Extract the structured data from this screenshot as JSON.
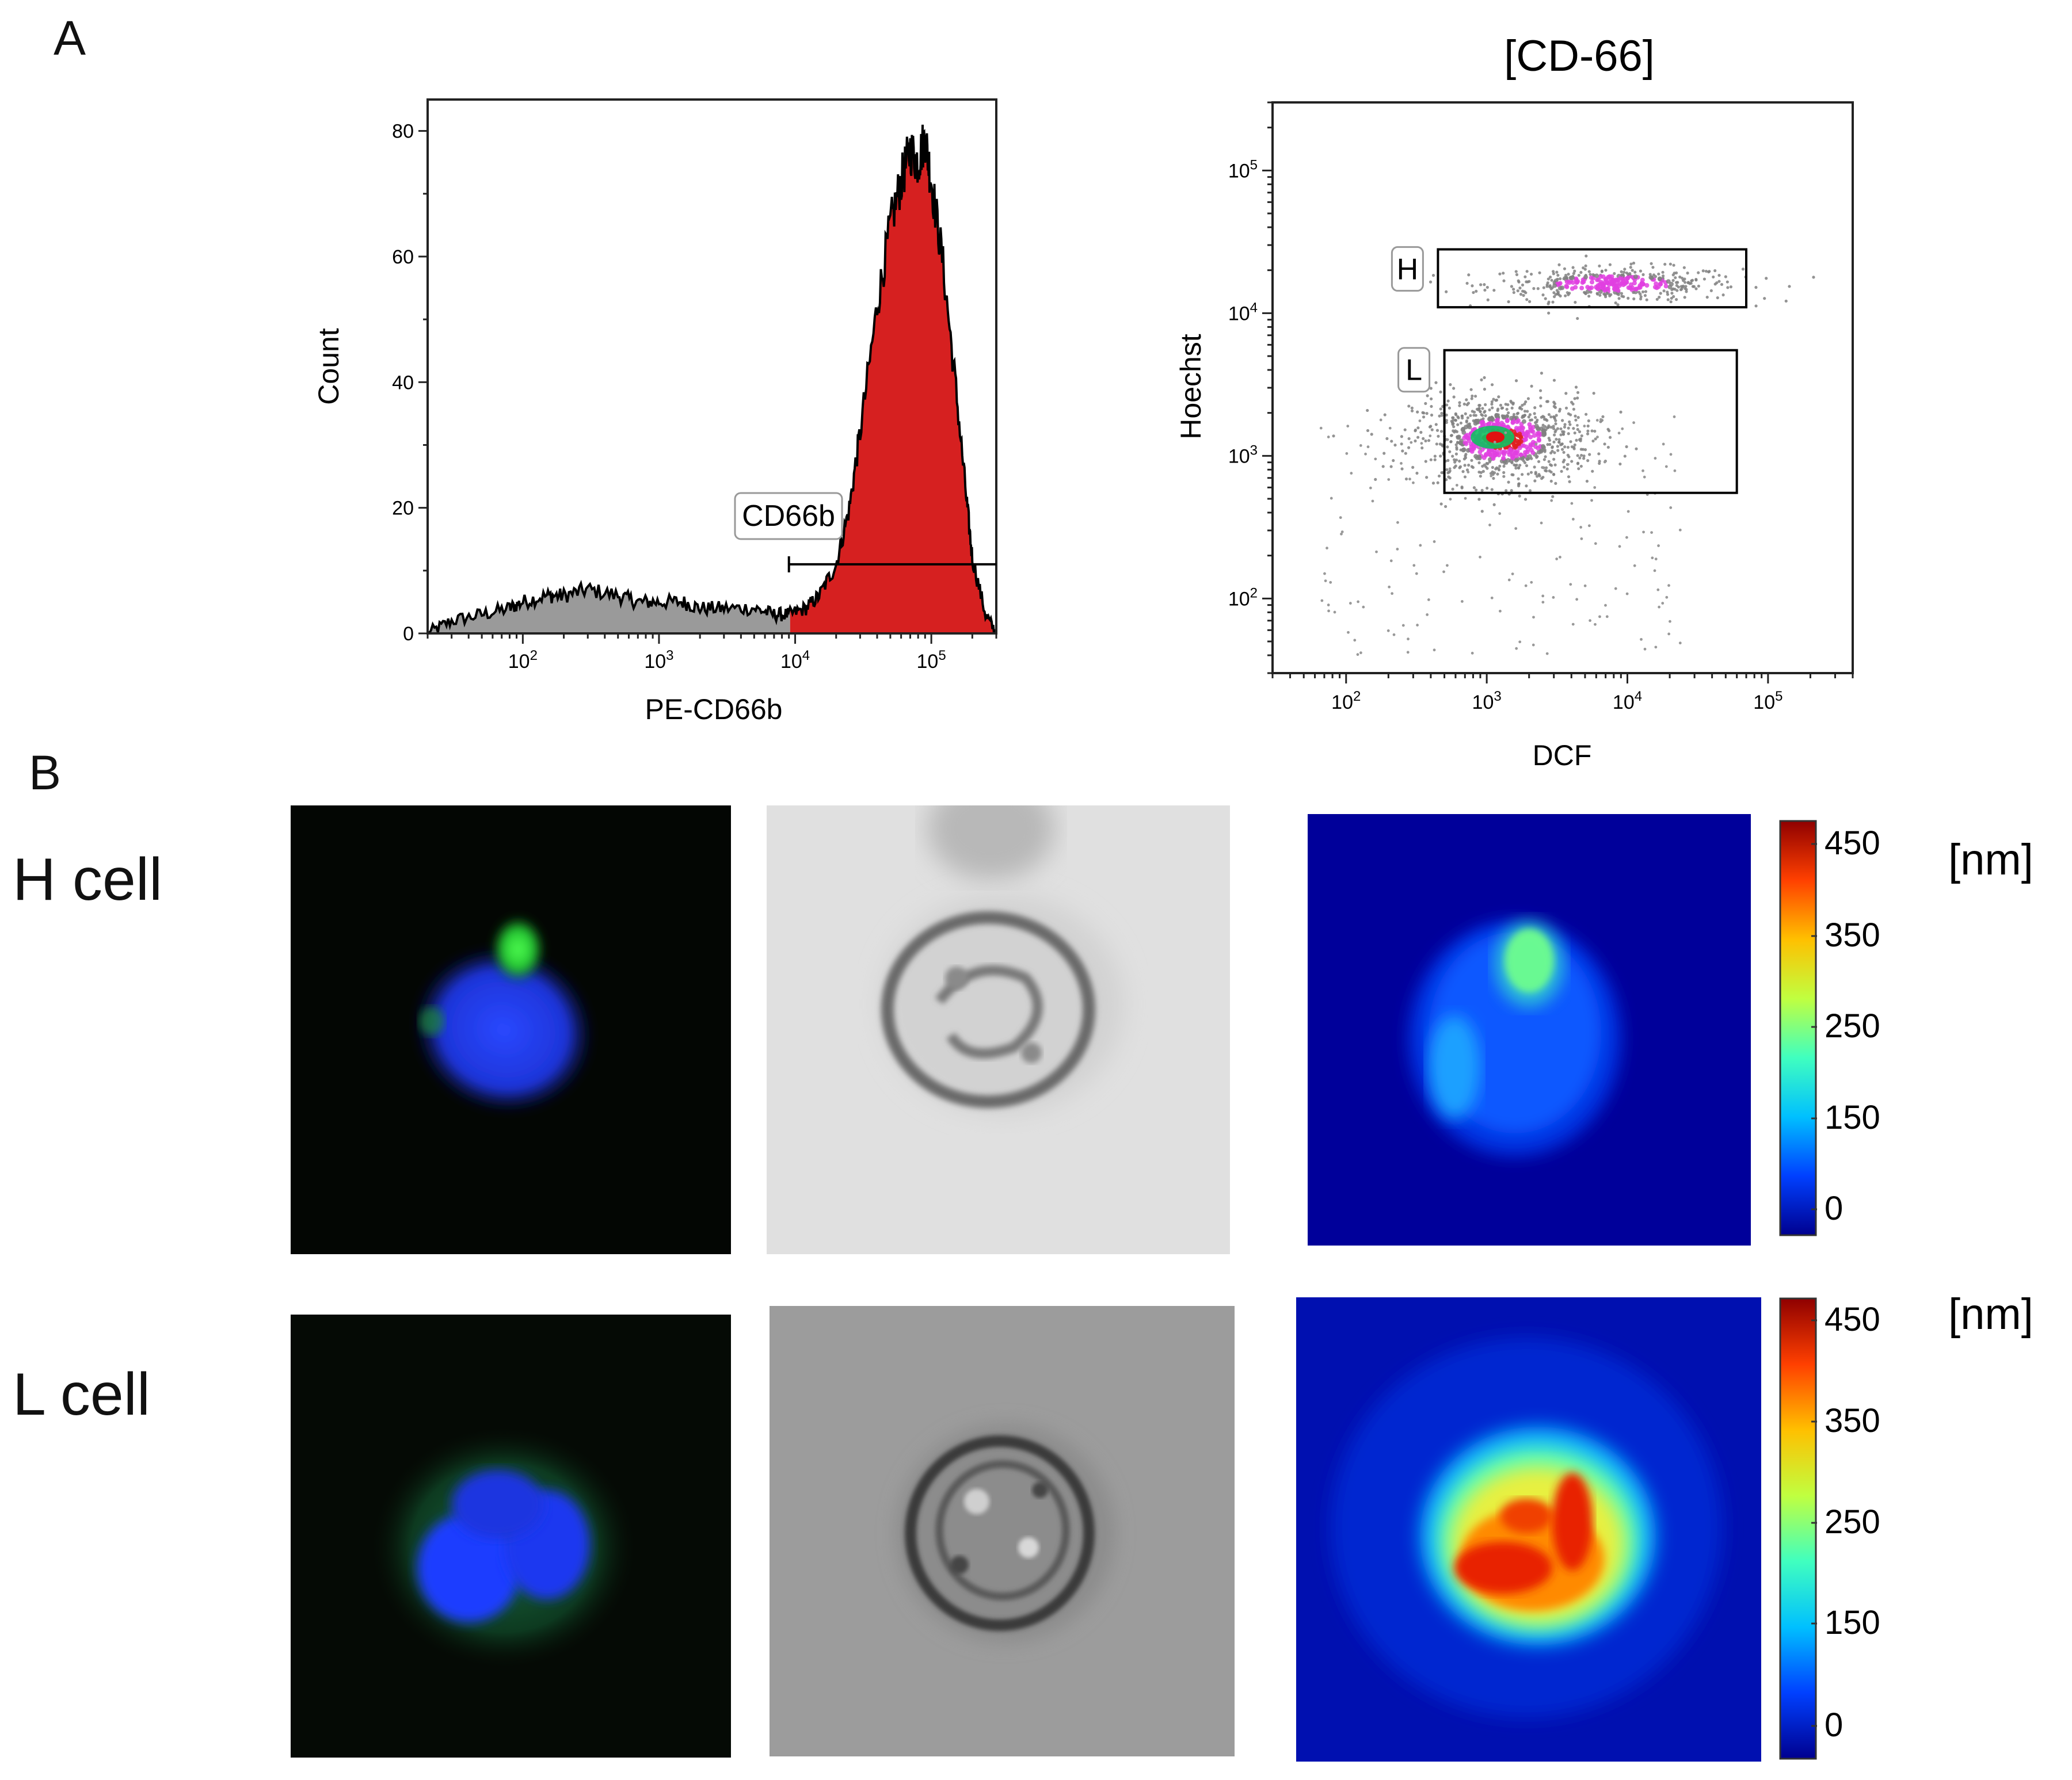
{
  "panel_labels": {
    "a": "A",
    "b": "B"
  },
  "row_labels": {
    "h": "H cell",
    "l": "L cell"
  },
  "colorbar": {
    "unit": "[nm]",
    "ticks": [
      "450",
      "350",
      "250",
      "150",
      "0"
    ],
    "colors": [
      "#00008f",
      "#0040ff",
      "#00c0ff",
      "#40ffbf",
      "#c0ff40",
      "#ffc000",
      "#ff4000",
      "#8f0000"
    ]
  },
  "colors": {
    "histogram_fill": "#d62020",
    "histogram_background": "#9a9a9a",
    "dense_dot": "#e040e0",
    "sparse_dot": "#808080",
    "nucleus": "#1e3cff",
    "granule": "#30e030"
  },
  "chart_data": [
    {
      "type": "area",
      "x_scale": "log",
      "xlabel": "PE-CD66b",
      "ylabel": "Count",
      "xlim": [
        20,
        300000
      ],
      "ylim": [
        0,
        85
      ],
      "x_ticks": [
        {
          "base": "10",
          "exp": "2",
          "value": 100
        },
        {
          "base": "10",
          "exp": "3",
          "value": 1000
        },
        {
          "base": "10",
          "exp": "4",
          "value": 10000
        },
        {
          "base": "10",
          "exp": "5",
          "value": 100000
        }
      ],
      "y_ticks": [
        {
          "label": "0",
          "value": 0
        },
        {
          "label": "20",
          "value": 20
        },
        {
          "label": "40",
          "value": 40
        },
        {
          "label": "60",
          "value": 60
        },
        {
          "label": "80",
          "value": 80
        }
      ],
      "gate": {
        "label": "CD66b",
        "from": 9000,
        "to": 300000,
        "level": 11
      },
      "series": [
        {
          "x": [
            20,
            30,
            50,
            80,
            100,
            150,
            200,
            300,
            500,
            700,
            1000,
            1500,
            2000,
            3000,
            5000,
            7000,
            9000,
            12000,
            15000,
            20000,
            25000,
            30000,
            40000,
            50000,
            60000,
            70000,
            80000,
            90000,
            100000,
            120000,
            150000,
            180000,
            200000,
            250000,
            300000
          ],
          "y": [
            0,
            2,
            3,
            4,
            5,
            6,
            6,
            7,
            6,
            5,
            5,
            5,
            4,
            4,
            4,
            3,
            3,
            4,
            6,
            11,
            20,
            32,
            52,
            65,
            72,
            77,
            75,
            79,
            72,
            60,
            40,
            22,
            12,
            3,
            0
          ]
        }
      ]
    },
    {
      "type": "scatter",
      "title": "[CD-66]",
      "x_scale": "log",
      "y_scale": "log",
      "xlabel": "DCF",
      "ylabel": "Hoechst",
      "xlim": [
        30,
        400000
      ],
      "ylim": [
        30,
        300000
      ],
      "x_ticks": [
        {
          "base": "10",
          "exp": "2",
          "value": 100
        },
        {
          "base": "10",
          "exp": "3",
          "value": 1000
        },
        {
          "base": "10",
          "exp": "4",
          "value": 10000
        },
        {
          "base": "10",
          "exp": "5",
          "value": 100000
        }
      ],
      "y_ticks": [
        {
          "base": "10",
          "exp": "2",
          "value": 100
        },
        {
          "base": "10",
          "exp": "3",
          "value": 1000
        },
        {
          "base": "10",
          "exp": "4",
          "value": 10000
        },
        {
          "base": "10",
          "exp": "5",
          "value": 100000
        }
      ],
      "gates": [
        {
          "label": "H",
          "x": [
            450,
            70000
          ],
          "y": [
            11000,
            28000
          ]
        },
        {
          "label": "L",
          "x": [
            500,
            60000
          ],
          "y": [
            550,
            5500
          ]
        }
      ],
      "clusters": [
        {
          "name": "H population",
          "x_center": 8000,
          "x_spread": 0.45,
          "y_center": 16000,
          "y_spread": 0.06,
          "count": 420
        },
        {
          "name": "L population",
          "x_center": 1300,
          "x_spread": 0.32,
          "y_center": 1300,
          "y_spread": 0.16,
          "count": 900
        }
      ]
    }
  ]
}
